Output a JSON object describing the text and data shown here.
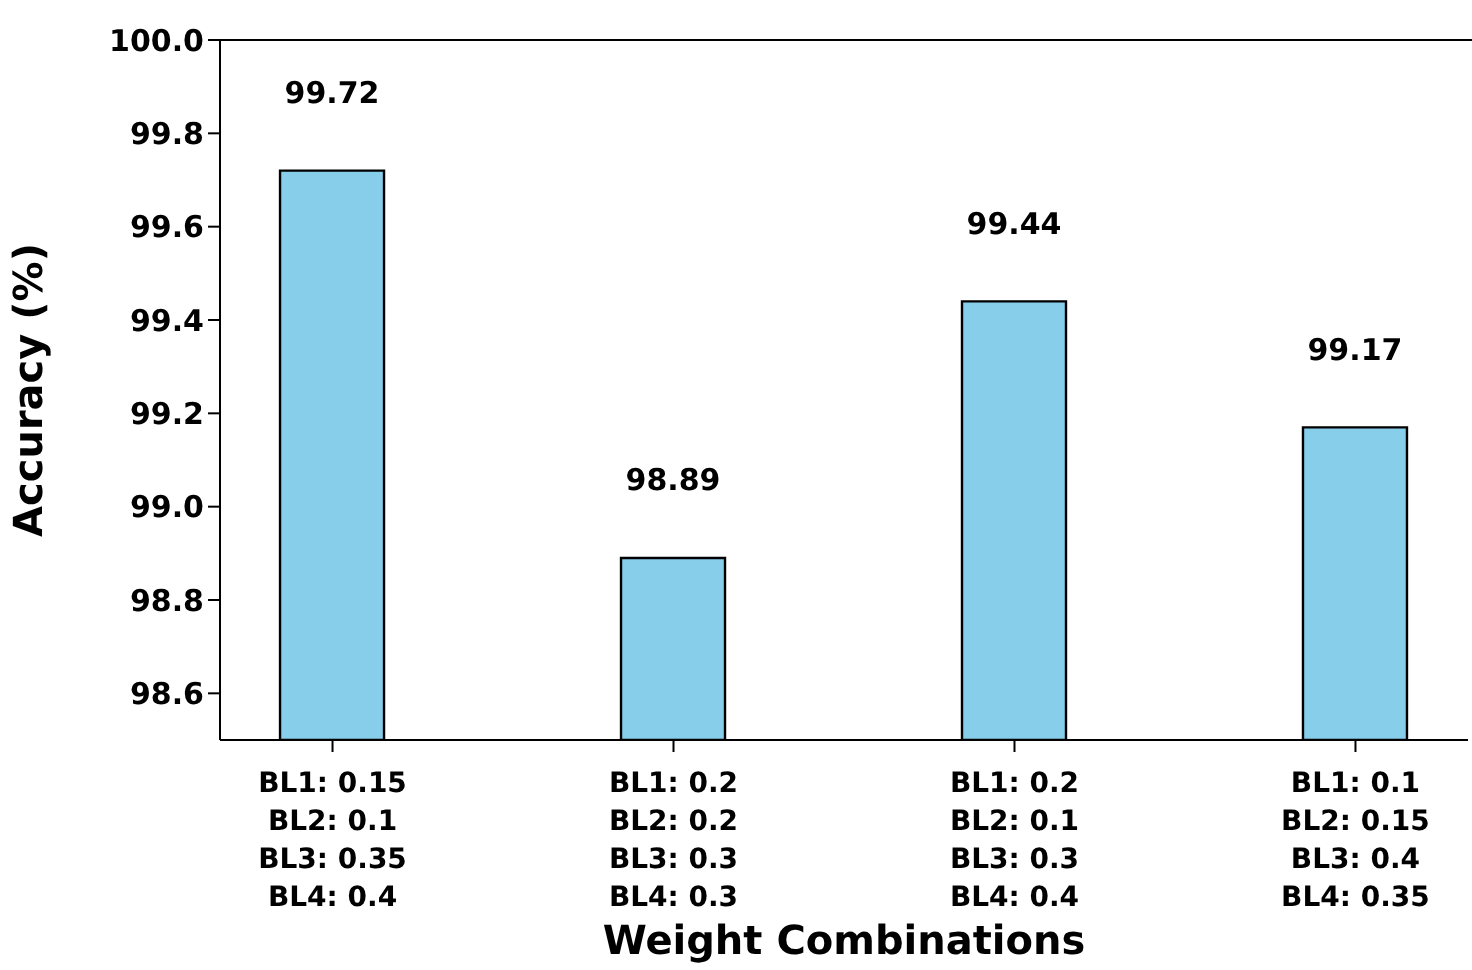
{
  "chart_data": {
    "type": "bar",
    "xlabel": "Weight Combinations",
    "ylabel": "Accuracy (%)",
    "categories": [
      "BL1: 0.15\nBL2: 0.1\nBL3: 0.35\nBL4: 0.4",
      "BL1: 0.2\nBL2: 0.2\nBL3: 0.3\nBL4: 0.3",
      "BL1: 0.2\nBL2: 0.1\nBL3: 0.3\nBL4: 0.4",
      "BL1: 0.1\nBL2: 0.15\nBL3: 0.4\nBL4: 0.35"
    ],
    "values": [
      99.72,
      98.89,
      99.44,
      99.17
    ],
    "color": "#87ceeb",
    "ylim": [
      98.5,
      100
    ],
    "yticks": [
      {
        "value": 98.6,
        "label": "98.6"
      },
      {
        "value": 98.8,
        "label": "98.8"
      },
      {
        "value": 99.0,
        "label": "99.0"
      },
      {
        "value": 99.2,
        "label": "99.2"
      },
      {
        "value": 99.4,
        "label": "99.4"
      },
      {
        "value": 99.6,
        "label": "99.6"
      },
      {
        "value": 99.8,
        "label": "99.8"
      },
      {
        "value": 100,
        "label": "100.0"
      }
    ],
    "grid": false,
    "data_labels": true
  }
}
